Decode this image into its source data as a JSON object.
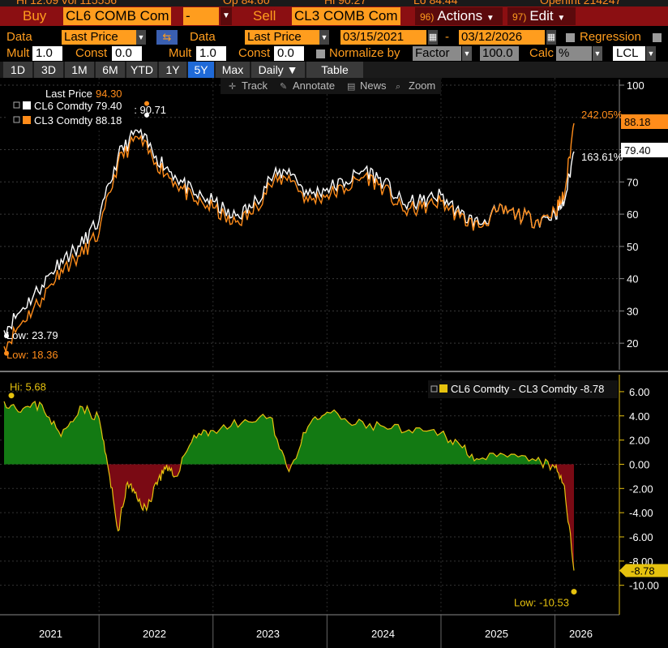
{
  "ticker": {
    "items": [
      "Hi 12.09",
      "Vol 115556",
      "Op 84.60",
      "Hi 90.27",
      "Lo 84.44",
      "OpenInt 214247"
    ]
  },
  "toolbar": {
    "buy_label": "Buy",
    "buy_security": "CL6 COMB Com",
    "mid_value": "-",
    "sell_label": "Sell",
    "sell_security": "CL3 COMB Com",
    "actions_num": "96)",
    "actions_label": "Actions",
    "edit_num": "97)",
    "edit_label": "Edit"
  },
  "settings": {
    "data1_label": "Data",
    "data1_value": "Last Price",
    "data2_label": "Data",
    "data2_value": "Last Price",
    "start_date": "03/15/2021",
    "date_sep": "-",
    "end_date": "03/12/2026",
    "regression_label": "Regression",
    "mult1_label": "Mult",
    "mult1_value": "1.0",
    "const1_label": "Const",
    "const1_value": "0.0",
    "mult2_label": "Mult",
    "mult2_value": "1.0",
    "const2_label": "Const",
    "const2_value": "0.0",
    "normalize_label": "Normalize by",
    "normalize_value": "Factor",
    "factor_value": "100.0",
    "calc_label": "Calc",
    "calc_value": "%",
    "currency_value": "LCL"
  },
  "tabs": [
    "1D",
    "3D",
    "1M",
    "6M",
    "YTD",
    "1Y",
    "5Y",
    "Max",
    "Daily ▼",
    "Table"
  ],
  "active_tab": "5Y",
  "chart_tools": [
    "Track",
    "Annotate",
    "News",
    "Zoom"
  ],
  "colors": {
    "cl6": "#ffffff",
    "cl3": "#ff8c1a",
    "spread_pos": "#137a13",
    "spread_neg": "#7a0a14",
    "spread_line": "#e6c20e",
    "axis_label": "#ff9d1e"
  },
  "chart_data": [
    {
      "type": "line",
      "legend": {
        "header": "Last Price",
        "header_value": "94.30",
        "entries": [
          {
            "name": "CL6 Comdty",
            "value": "79.40"
          },
          {
            "name": "CL3 Comdty",
            "value": "88.18"
          }
        ]
      },
      "ylim": [
        13,
        101
      ],
      "yticks": [
        20,
        30,
        40,
        50,
        60,
        70,
        80,
        90,
        100
      ],
      "yticklabels": [
        "20",
        "30",
        "40",
        "50",
        "60",
        "70",
        "",
        "",
        "100"
      ],
      "annotations": {
        "hi": "Hi: 90.71",
        "low_cl6": "Low: 23.79",
        "low_cl3": "Low: 18.36",
        "pct_cl3": "242.05%",
        "pct_cl6": "163.61%",
        "last_cl3": "88.18",
        "last_cl6": "79.40"
      },
      "x": [
        "2021-03",
        "2021-05",
        "2021-07",
        "2021-09",
        "2021-11",
        "2022-01",
        "2022-03",
        "2022-05",
        "2022-07",
        "2022-09",
        "2022-11",
        "2023-01",
        "2023-03",
        "2023-05",
        "2023-07",
        "2023-09",
        "2023-11",
        "2024-01",
        "2024-03",
        "2024-05",
        "2024-07",
        "2024-09",
        "2024-11",
        "2025-01",
        "2025-03",
        "2025-05",
        "2025-07",
        "2025-09",
        "2025-11",
        "2026-01",
        "2026-02",
        "2026-03"
      ],
      "series": [
        {
          "name": "CL6 Comdty",
          "values": [
            24,
            31,
            38,
            46,
            50,
            58,
            78,
            86,
            78,
            72,
            66,
            64,
            59,
            62,
            71,
            74,
            66,
            68,
            70,
            74,
            70,
            63,
            64,
            66,
            60,
            57,
            61,
            60,
            58,
            60,
            64,
            79.4
          ]
        },
        {
          "name": "CL3 Comdty",
          "values": [
            19,
            27,
            34,
            43,
            47,
            54,
            76,
            84,
            76,
            70,
            64,
            62,
            57,
            60,
            69,
            72,
            64,
            66,
            68,
            72,
            68,
            61,
            62,
            64,
            59,
            56,
            61,
            60,
            58,
            61,
            66,
            88.18
          ]
        }
      ]
    },
    {
      "type": "area",
      "legend": {
        "name": "CL6 Comdty - CL3 Comdty",
        "value": "-8.78"
      },
      "ylim": [
        -12.3,
        7.0
      ],
      "yticks": [
        -10,
        -8,
        -6,
        -4,
        -2,
        0,
        2,
        4,
        6
      ],
      "yticklabels": [
        "-10.00",
        "-8.00",
        "-6.00",
        "-4.00",
        "-2.00",
        "0.00",
        "2.00",
        "4.00",
        "6.00"
      ],
      "annotations": {
        "hi": "Hi: 5.68",
        "low": "Low: -10.53",
        "last": "-8.78"
      },
      "x_labels": [
        "2021",
        "2022",
        "2023",
        "2024",
        "2025",
        "2026"
      ],
      "x": [
        "2021-03",
        "2021-05",
        "2021-07",
        "2021-09",
        "2021-11",
        "2022-01",
        "2022-02",
        "2022-03",
        "2022-04",
        "2022-05",
        "2022-06",
        "2022-07",
        "2022-08",
        "2022-09",
        "2022-11",
        "2023-01",
        "2023-04",
        "2023-07",
        "2023-09",
        "2023-11",
        "2024-01",
        "2024-04",
        "2024-07",
        "2024-10",
        "2025-01",
        "2025-03",
        "2025-05",
        "2025-08",
        "2025-11",
        "2026-01",
        "2026-02",
        "2026-03"
      ],
      "series": [
        {
          "name": "CL6 Comdty - CL3 Comdty",
          "values": [
            5.2,
            4.6,
            4.9,
            2.3,
            4.8,
            3.8,
            -0.5,
            -5.5,
            -1.5,
            -2.8,
            -3.8,
            -1.5,
            -0.4,
            -1.0,
            2.4,
            2.8,
            3.4,
            3.9,
            -0.6,
            3.1,
            4.3,
            3.3,
            3.1,
            2.6,
            2.6,
            1.6,
            0.4,
            0.6,
            0.3,
            -0.3,
            -1.8,
            -8.78
          ]
        }
      ]
    }
  ]
}
